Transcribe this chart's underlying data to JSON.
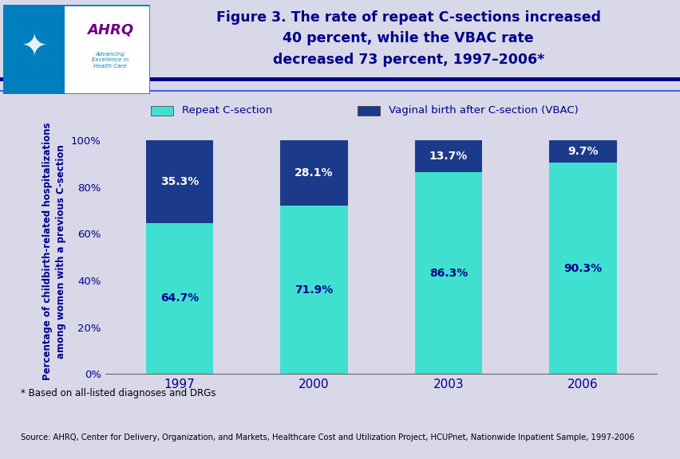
{
  "years": [
    "1997",
    "2000",
    "2003",
    "2006"
  ],
  "repeat_csection": [
    64.7,
    71.9,
    86.3,
    90.3
  ],
  "vbac": [
    35.3,
    28.1,
    13.7,
    9.7
  ],
  "repeat_color": "#40E0D0",
  "vbac_color": "#1C3A8A",
  "bar_width": 0.5,
  "title_line1": "Figure 3. The rate of repeat C-sections increased",
  "title_line2": "40 percent, while the VBAC rate",
  "title_line3": "decreased 73 percent, 1997–2006*",
  "ylabel": "Percentage of childbirth-related hospitalizations\namong women with a previous C-section",
  "ytick_labels": [
    "0%",
    "20%",
    "40%",
    "60%",
    "80%",
    "100%"
  ],
  "ytick_values": [
    0,
    20,
    40,
    60,
    80,
    100
  ],
  "legend_repeat": "Repeat C-section",
  "legend_vbac": "Vaginal birth after C-section (VBAC)",
  "footnote": "* Based on all-listed diagnoses and DRGs",
  "source": "Source: AHRQ, Center for Delivery, Organization, and Markets, Healthcare Cost and Utilization Project, HCUPnet, Nationwide Inpatient Sample, 1997-2006",
  "bg_color": "#D8D8E8",
  "header_bg": "#FFFFFF",
  "title_color": "#00008B",
  "label_color": "#00008B",
  "repeat_label_color": "#00008B",
  "vbac_label_color": "#FFFFFF",
  "separator_color1": "#00008B",
  "separator_color2": "#4169E1",
  "logo_box_color": "#007FBF",
  "footnote_color": "#000000",
  "source_color": "#000000"
}
